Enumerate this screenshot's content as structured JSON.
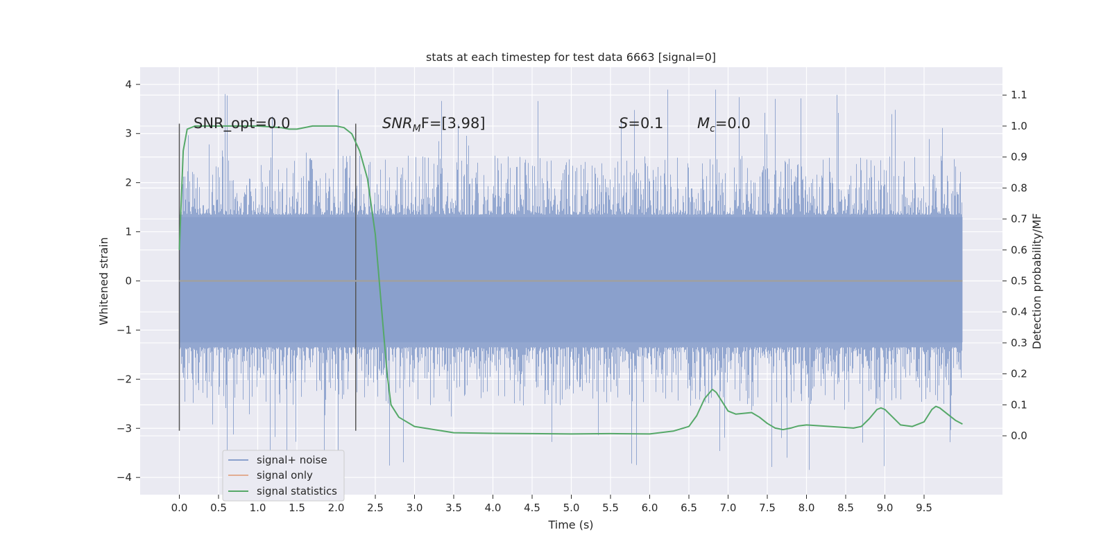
{
  "chart_data": {
    "type": "line",
    "title": "stats at each timestep for test data 6663 [signal=0]",
    "xlabel": "Time (s)",
    "ylabel": "Whitened strain",
    "y2label": "Detection probability/MF",
    "xlim": [
      -0.5,
      10.5
    ],
    "ylim": [
      -4.35,
      4.35
    ],
    "y2lim": [
      -0.19,
      1.19
    ],
    "x_ticks": [
      "0.0",
      "0.5",
      "1.0",
      "1.5",
      "2.0",
      "2.5",
      "3.0",
      "3.5",
      "4.0",
      "4.5",
      "5.0",
      "5.5",
      "6.0",
      "6.5",
      "7.0",
      "7.5",
      "8.0",
      "8.5",
      "9.0",
      "9.5"
    ],
    "y_ticks": [
      "4",
      "3",
      "2",
      "1",
      "0",
      "−1",
      "−2",
      "−3",
      "−4"
    ],
    "y2_ticks": [
      "1.1",
      "1.0",
      "0.9",
      "0.8",
      "0.7",
      "0.6",
      "0.5",
      "0.4",
      "0.3",
      "0.2",
      "0.1",
      "0.0"
    ],
    "grid": true,
    "legend_position": "lower-left",
    "colors": {
      "noise": "#8aa0cc",
      "signal_only": "#dd8452",
      "statistics": "#55a868",
      "marker": "#555555",
      "plot_bg": "#eaeaf2"
    },
    "annotations": {
      "snr_opt": "SNR_opt=0.0",
      "snr_mf_label": "SNR",
      "snr_mf_sub": "M",
      "snr_mf_rest": "F=[3.98]",
      "s_label": "S",
      "s_rest": "=0.1",
      "mc_label": "M",
      "mc_sub": "c",
      "mc_rest": "=0.0"
    },
    "vertical_markers": [
      {
        "x": 0.0,
        "y_range": [
          -3.05,
          3.2
        ]
      },
      {
        "x": 2.25,
        "y_range": [
          -3.05,
          3.2
        ]
      }
    ],
    "series": [
      {
        "name": "signal+ noise",
        "kind": "noise-envelope",
        "band_y": [
          -1.25,
          1.3
        ],
        "spike_top_y": [
          1.5,
          4.05
        ],
        "spike_bottom_y": [
          -1.5,
          -3.9
        ],
        "x_range": [
          0.0,
          9.99
        ]
      },
      {
        "name": "signal only",
        "kind": "line",
        "x": [
          0.0,
          9.99
        ],
        "y": [
          0.0,
          0.0
        ]
      },
      {
        "name": "signal statistics",
        "kind": "line",
        "axis": "right",
        "x": [
          0.0,
          0.05,
          0.1,
          0.15,
          0.2,
          0.3,
          0.5,
          1.0,
          1.3,
          1.4,
          1.5,
          1.7,
          2.0,
          2.1,
          2.2,
          2.3,
          2.4,
          2.5,
          2.6,
          2.65,
          2.7,
          2.8,
          3.0,
          3.5,
          4.0,
          4.5,
          5.0,
          5.5,
          6.0,
          6.3,
          6.5,
          6.6,
          6.7,
          6.8,
          6.85,
          6.9,
          7.0,
          7.1,
          7.3,
          7.4,
          7.5,
          7.6,
          7.7,
          7.8,
          7.9,
          8.0,
          8.3,
          8.6,
          8.7,
          8.8,
          8.9,
          8.95,
          9.0,
          9.1,
          9.2,
          9.35,
          9.5,
          9.6,
          9.65,
          9.7,
          9.8,
          9.9,
          9.99
        ],
        "y": [
          0.6,
          0.92,
          0.99,
          0.995,
          1.0,
          1.0,
          1.0,
          1.0,
          0.995,
          0.99,
          0.99,
          1.0,
          1.0,
          0.995,
          0.975,
          0.92,
          0.83,
          0.65,
          0.35,
          0.2,
          0.1,
          0.06,
          0.03,
          0.01,
          0.008,
          0.007,
          0.006,
          0.007,
          0.006,
          0.015,
          0.03,
          0.065,
          0.12,
          0.15,
          0.14,
          0.12,
          0.08,
          0.07,
          0.075,
          0.06,
          0.04,
          0.025,
          0.02,
          0.025,
          0.032,
          0.035,
          0.03,
          0.025,
          0.03,
          0.055,
          0.085,
          0.09,
          0.085,
          0.06,
          0.035,
          0.03,
          0.045,
          0.085,
          0.095,
          0.09,
          0.07,
          0.05,
          0.038
        ]
      }
    ]
  }
}
